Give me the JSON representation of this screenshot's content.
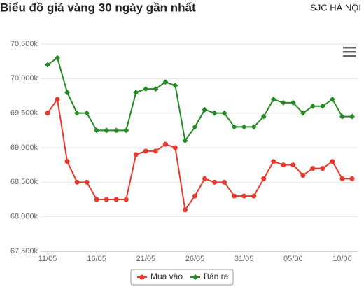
{
  "chart_data": {
    "type": "line",
    "title": "Biểu đồ giá vàng 30 ngày gần nhất",
    "subtitle": "SJC HÀ NỘI",
    "categories": [
      "11/05",
      null,
      null,
      null,
      null,
      "16/05",
      null,
      null,
      null,
      null,
      "21/05",
      null,
      null,
      null,
      null,
      "26/05",
      null,
      null,
      null,
      null,
      "31/05",
      null,
      null,
      null,
      null,
      "05/06",
      null,
      null,
      null,
      null,
      "10/06",
      null
    ],
    "series": [
      {
        "name": "Mua vào",
        "color": "#e8392c",
        "values": [
          69500,
          69700,
          68800,
          68500,
          68500,
          68250,
          68250,
          68250,
          68250,
          68900,
          68950,
          68950,
          69050,
          69000,
          68100,
          68300,
          68550,
          68500,
          68500,
          68300,
          68300,
          68300,
          68550,
          68800,
          68750,
          68750,
          68600,
          68700,
          68700,
          68800,
          68550,
          68550
        ]
      },
      {
        "name": "Bán ra",
        "color": "#238b22",
        "values": [
          70200,
          70300,
          69800,
          69500,
          69500,
          69250,
          69250,
          69250,
          69250,
          69800,
          69850,
          69850,
          69950,
          69900,
          69100,
          69300,
          69550,
          69500,
          69500,
          69300,
          69300,
          69300,
          69450,
          69700,
          69650,
          69650,
          69500,
          69600,
          69600,
          69700,
          69450,
          69450
        ]
      }
    ],
    "ylim": [
      67500,
      70500
    ],
    "yticks": [
      {
        "value": 67500,
        "label": "67,500k"
      },
      {
        "value": 68000,
        "label": "68,000k"
      },
      {
        "value": 68500,
        "label": "68,500k"
      },
      {
        "value": 69000,
        "label": "69,000k"
      },
      {
        "value": 69500,
        "label": "69,500k"
      },
      {
        "value": 70000,
        "label": "70,000k"
      },
      {
        "value": 70500,
        "label": "70,500k"
      }
    ],
    "grid": true,
    "legend": "bottom"
  }
}
